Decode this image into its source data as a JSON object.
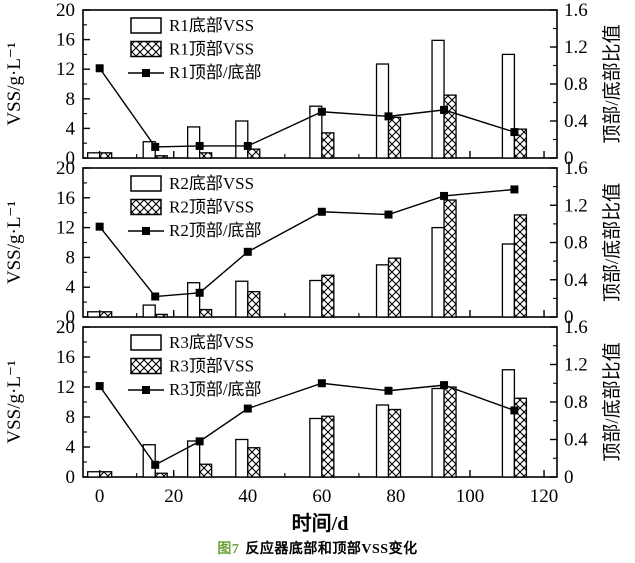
{
  "figure": {
    "caption_prefix": "图7",
    "caption_text": "反应器底部和顶部VSS变化",
    "caption_prefix_color": "#6da23c"
  },
  "chart_data": {
    "type": "bar",
    "title": "",
    "xlabel": "时间/d",
    "x": [
      0,
      15,
      27,
      40,
      60,
      78,
      93,
      112
    ],
    "x_ticks": [
      0,
      20,
      40,
      60,
      80,
      100,
      120
    ],
    "x_minor_step": 10,
    "xlim": [
      -4.5,
      123.5
    ],
    "grid": false,
    "legend_position": "upper-left-inside",
    "left_axis": {
      "label": "VSS/g·L⁻¹",
      "ticks": [
        0,
        4,
        8,
        12,
        16,
        20
      ],
      "minor_step": 2,
      "lim": [
        0,
        20
      ]
    },
    "right_axis": {
      "label": "顶部/底部比值",
      "ticks": [
        0,
        0.4,
        0.8,
        1.2,
        1.6
      ],
      "minor_step": 0.2,
      "lim": [
        0,
        1.6
      ]
    },
    "bar_style": {
      "bottom_fill": "#ffffff",
      "top_fill": "crosshatch",
      "stroke": "#000000"
    },
    "line_style": {
      "color": "#000000",
      "marker": "filled-square"
    },
    "panels": [
      {
        "name": "R1",
        "legend": [
          "R1底部VSS",
          "R1顶部VSS",
          "R1顶部/底部"
        ],
        "series": [
          {
            "name": "R1底部VSS",
            "type": "bar",
            "values": [
              0.7,
              2.2,
              4.2,
              5.0,
              7.0,
              12.7,
              15.9,
              14.0
            ]
          },
          {
            "name": "R1顶部VSS",
            "type": "bar",
            "values": [
              0.7,
              0.3,
              0.7,
              1.2,
              3.4,
              5.5,
              8.5,
              3.9
            ]
          },
          {
            "name": "R1顶部/底部",
            "type": "line",
            "axis": "right",
            "values": [
              0.97,
              0.12,
              0.13,
              0.13,
              0.5,
              0.45,
              0.52,
              0.28
            ]
          }
        ]
      },
      {
        "name": "R2",
        "legend": [
          "R2底部VSS",
          "R2顶部VSS",
          "R2顶部/底部"
        ],
        "series": [
          {
            "name": "R2底部VSS",
            "type": "bar",
            "values": [
              0.7,
              1.6,
              4.6,
              4.8,
              4.9,
              7.0,
              12.0,
              9.8
            ]
          },
          {
            "name": "R2顶部VSS",
            "type": "bar",
            "values": [
              0.7,
              0.35,
              1.0,
              3.4,
              5.6,
              7.9,
              15.7,
              13.7
            ]
          },
          {
            "name": "R2顶部/底部",
            "type": "line",
            "axis": "right",
            "values": [
              0.97,
              0.22,
              0.26,
              0.7,
              1.13,
              1.1,
              1.3,
              1.37
            ]
          }
        ]
      },
      {
        "name": "R3",
        "legend": [
          "R3底部VSS",
          "R3顶部VSS",
          "R3顶部/底部"
        ],
        "series": [
          {
            "name": "R3底部VSS",
            "type": "bar",
            "values": [
              0.7,
              4.3,
              4.8,
              5.0,
              7.8,
              9.6,
              11.8,
              14.3
            ]
          },
          {
            "name": "R3顶部VSS",
            "type": "bar",
            "values": [
              0.7,
              0.5,
              1.7,
              3.9,
              8.1,
              9.0,
              12.0,
              10.5
            ]
          },
          {
            "name": "R3顶部/底部",
            "type": "line",
            "axis": "right",
            "values": [
              0.97,
              0.13,
              0.38,
              0.73,
              1.0,
              0.92,
              0.98,
              0.71
            ]
          }
        ]
      }
    ]
  }
}
